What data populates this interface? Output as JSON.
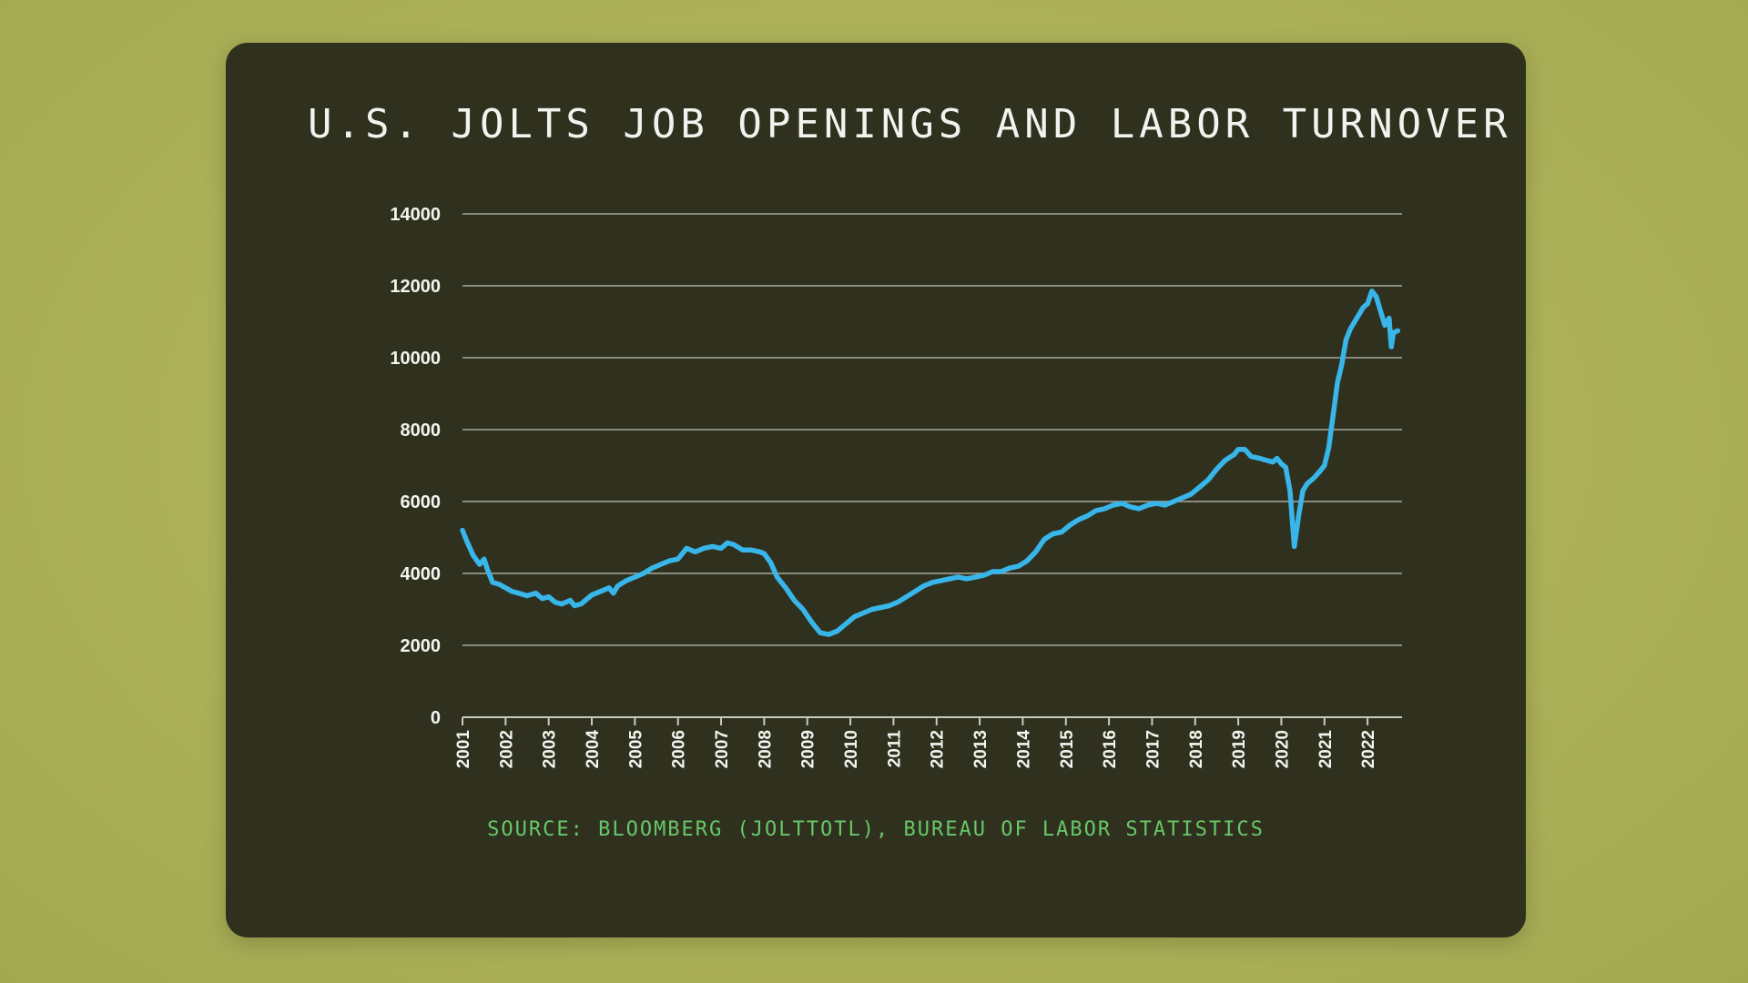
{
  "chart_data": {
    "type": "line",
    "title": "U.S. JOLTS JOB OPENINGS AND LABOR TURNOVER",
    "source": "SOURCE: BLOOMBERG (JOLTTOTL), BUREAU OF LABOR STATISTICS",
    "xlabel": "",
    "ylabel": "",
    "ylim": [
      0,
      14000
    ],
    "xlim": [
      2001,
      2022.8
    ],
    "yticks": [
      "0",
      "2000",
      "4000",
      "6000",
      "8000",
      "10000",
      "12000",
      "14000"
    ],
    "xticks": [
      "2001",
      "2002",
      "2003",
      "2004",
      "2005",
      "2006",
      "2007",
      "2008",
      "2009",
      "2010",
      "2011",
      "2012",
      "2013",
      "2014",
      "2015",
      "2016",
      "2017",
      "2018",
      "2019",
      "2020",
      "2021",
      "2022"
    ],
    "grid": true,
    "legend": "none",
    "series": [
      {
        "color": "#38b6ea",
        "x": [
          2001.0,
          2001.1,
          2001.25,
          2001.4,
          2001.5,
          2001.58,
          2001.7,
          2001.85,
          2002.0,
          2002.15,
          2002.3,
          2002.5,
          2002.7,
          2002.85,
          2003.0,
          2003.15,
          2003.3,
          2003.5,
          2003.6,
          2003.75,
          2003.9,
          2004.0,
          2004.2,
          2004.4,
          2004.5,
          2004.6,
          2004.8,
          2005.0,
          2005.2,
          2005.4,
          2005.6,
          2005.8,
          2006.0,
          2006.2,
          2006.4,
          2006.6,
          2006.8,
          2007.0,
          2007.15,
          2007.3,
          2007.5,
          2007.7,
          2007.9,
          2008.0,
          2008.15,
          2008.3,
          2008.5,
          2008.7,
          2008.9,
          2009.1,
          2009.3,
          2009.5,
          2009.7,
          2009.9,
          2010.1,
          2010.3,
          2010.5,
          2010.7,
          2010.9,
          2011.1,
          2011.3,
          2011.5,
          2011.7,
          2011.9,
          2012.1,
          2012.3,
          2012.5,
          2012.7,
          2012.9,
          2013.1,
          2013.3,
          2013.5,
          2013.7,
          2013.9,
          2014.1,
          2014.3,
          2014.5,
          2014.7,
          2014.9,
          2015.1,
          2015.3,
          2015.5,
          2015.7,
          2015.9,
          2016.1,
          2016.3,
          2016.5,
          2016.7,
          2016.9,
          2017.1,
          2017.3,
          2017.5,
          2017.7,
          2017.9,
          2018.1,
          2018.3,
          2018.5,
          2018.7,
          2018.9,
          2019.0,
          2019.15,
          2019.3,
          2019.5,
          2019.65,
          2019.8,
          2019.9,
          2020.0,
          2020.1,
          2020.2,
          2020.3,
          2020.4,
          2020.5,
          2020.6,
          2020.75,
          2020.9,
          2021.0,
          2021.1,
          2021.2,
          2021.3,
          2021.4,
          2021.5,
          2021.6,
          2021.7,
          2021.8,
          2021.9,
          2022.0,
          2022.1,
          2022.2,
          2022.3,
          2022.4,
          2022.5,
          2022.55,
          2022.6,
          2022.7
        ],
        "y": [
          5200,
          4900,
          4500,
          4250,
          4400,
          4100,
          3750,
          3700,
          3600,
          3500,
          3450,
          3380,
          3450,
          3300,
          3350,
          3200,
          3150,
          3250,
          3100,
          3150,
          3300,
          3400,
          3500,
          3600,
          3450,
          3650,
          3800,
          3900,
          4000,
          4150,
          4250,
          4350,
          4400,
          4700,
          4600,
          4700,
          4750,
          4700,
          4850,
          4800,
          4650,
          4650,
          4600,
          4550,
          4300,
          3900,
          3600,
          3250,
          3000,
          2650,
          2350,
          2300,
          2400,
          2600,
          2800,
          2900,
          3000,
          3050,
          3100,
          3200,
          3350,
          3500,
          3650,
          3750,
          3800,
          3850,
          3900,
          3850,
          3900,
          3950,
          4050,
          4050,
          4150,
          4200,
          4350,
          4600,
          4950,
          5100,
          5150,
          5350,
          5500,
          5600,
          5750,
          5800,
          5900,
          5950,
          5850,
          5800,
          5900,
          5950,
          5900,
          6000,
          6100,
          6200,
          6400,
          6600,
          6900,
          7150,
          7300,
          7450,
          7450,
          7250,
          7200,
          7150,
          7100,
          7200,
          7050,
          6950,
          6300,
          4750,
          5600,
          6300,
          6500,
          6650,
          6850,
          7000,
          7500,
          8400,
          9300,
          9800,
          10500,
          10800,
          11000,
          11200,
          11400,
          11500,
          11850,
          11700,
          11300,
          10900,
          11100,
          10300,
          10700,
          10750
        ]
      }
    ]
  }
}
